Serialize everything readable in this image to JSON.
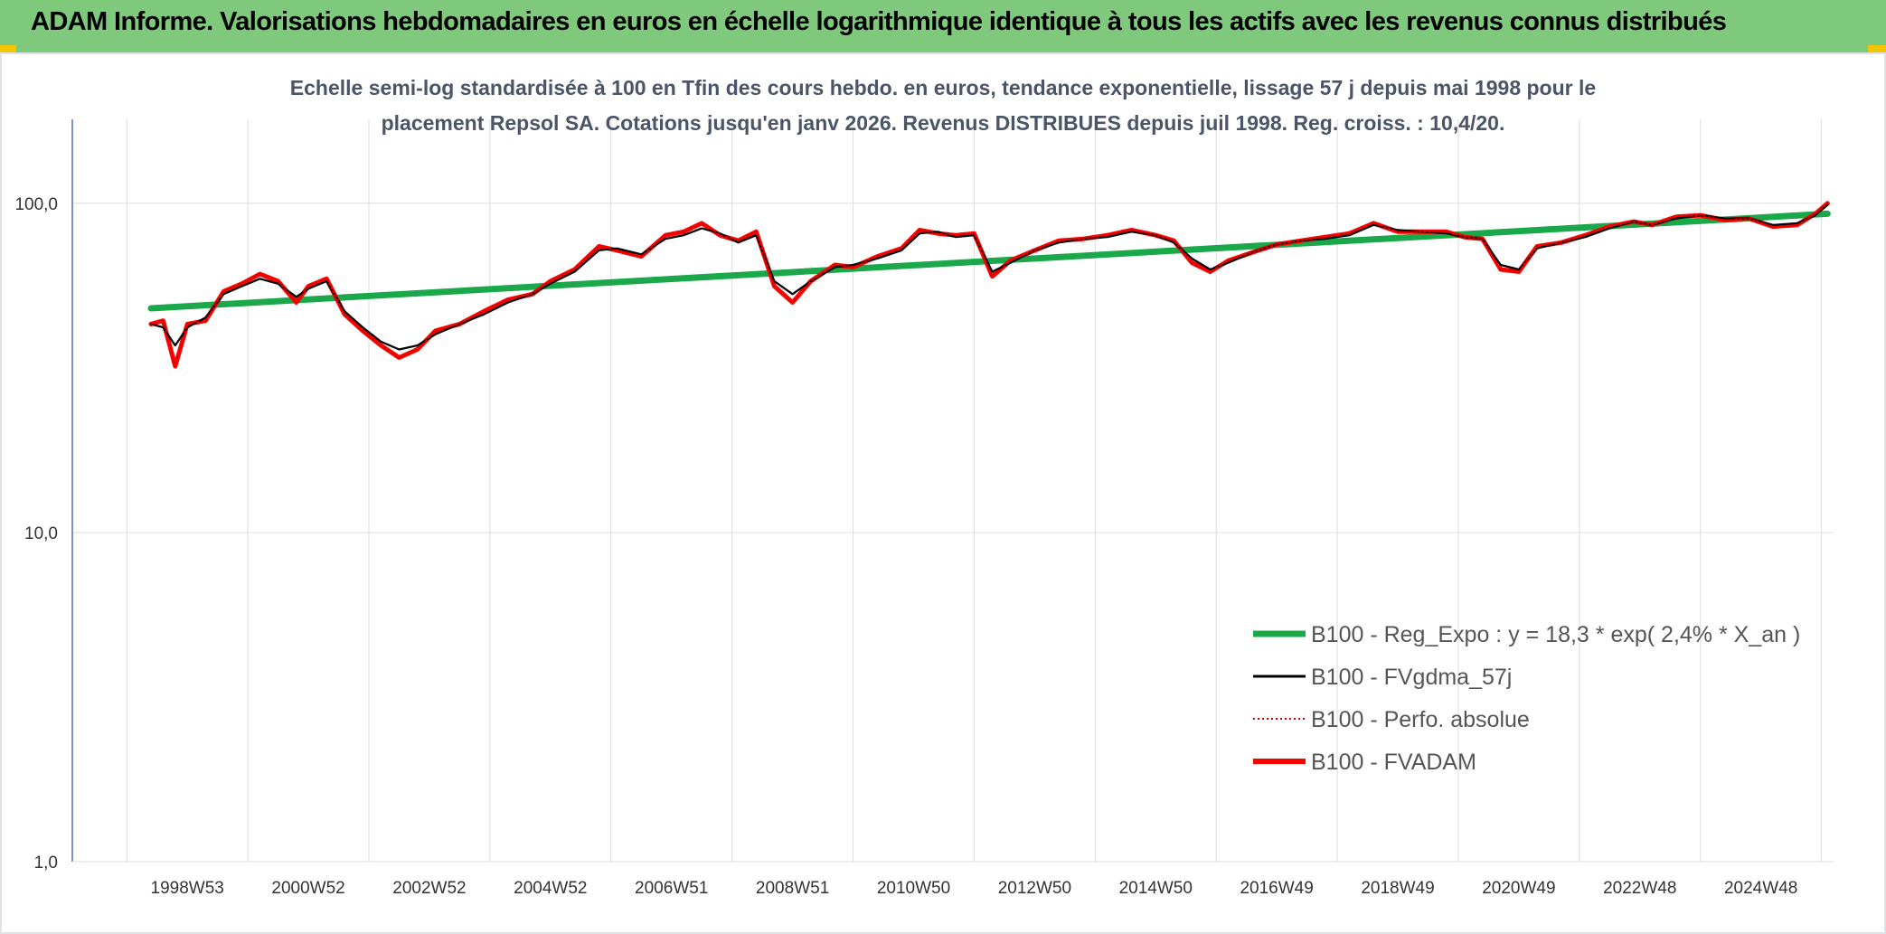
{
  "header": {
    "title": "ADAM Informe. Valorisations hebdomadaires en euros en échelle logarithmique identique à tous les actifs avec les revenus connus distribués"
  },
  "colors": {
    "banner": "#7fc97c",
    "accent_corner": "#f5c400",
    "reg_expo": "#1aa84a",
    "fvgdma": "#000000",
    "perfo": "#d40000",
    "fvadam": "#ff0000"
  },
  "chart_data": {
    "type": "line",
    "subtitle_line1": "Echelle semi-log standardisée à 100 en Tfin des cours hebdo. en euros, tendance exponentielle, lissage 57 j depuis mai 1998 pour le",
    "subtitle_line2": "placement Repsol SA. Cotations jusqu'en janv 2026. Revenus DISTRIBUES depuis juil 1998. Reg. croiss. : 10,4/20.",
    "y_scale": "log",
    "ylim": [
      1,
      180
    ],
    "y_ticks": [
      {
        "value": 1,
        "label": "1,0"
      },
      {
        "value": 10,
        "label": "10,0"
      },
      {
        "value": 100,
        "label": "100,0"
      }
    ],
    "x_range": [
      1997.1,
      2026.2
    ],
    "x_ticks": [
      {
        "year": 1999.0,
        "label": "1998W53"
      },
      {
        "year": 2001.0,
        "label": "2000W52"
      },
      {
        "year": 2003.0,
        "label": "2002W52"
      },
      {
        "year": 2005.0,
        "label": "2004W52"
      },
      {
        "year": 2007.0,
        "label": "2006W51"
      },
      {
        "year": 2009.0,
        "label": "2008W51"
      },
      {
        "year": 2011.0,
        "label": "2010W50"
      },
      {
        "year": 2013.0,
        "label": "2012W50"
      },
      {
        "year": 2015.0,
        "label": "2014W50"
      },
      {
        "year": 2017.0,
        "label": "2016W49"
      },
      {
        "year": 2019.0,
        "label": "2018W49"
      },
      {
        "year": 2021.0,
        "label": "2020W49"
      },
      {
        "year": 2023.0,
        "label": "2022W48"
      },
      {
        "year": 2025.0,
        "label": "2024W48"
      }
    ],
    "grid": true,
    "legend_position": "bottom-right",
    "series": [
      {
        "name": "B100 - Reg_Expo : y = 18,3 * exp( 2,4% *  X_an )",
        "style": "regression",
        "x": [
          1998.4,
          2026.1
        ],
        "y": [
          48,
          93
        ]
      },
      {
        "name": "B100 - FVgdma_57j",
        "style": "smoothed",
        "x": [
          1998.4,
          1998.6,
          1998.8,
          1999.0,
          1999.3,
          1999.6,
          1999.9,
          2000.2,
          2000.5,
          2000.8,
          2001.0,
          2001.3,
          2001.6,
          2001.9,
          2002.2,
          2002.5,
          2002.8,
          2003.1,
          2003.5,
          2003.9,
          2004.3,
          2004.7,
          2005.0,
          2005.4,
          2005.8,
          2006.1,
          2006.5,
          2006.9,
          2007.2,
          2007.5,
          2007.8,
          2008.1,
          2008.4,
          2008.7,
          2009.0,
          2009.3,
          2009.7,
          2010.0,
          2010.4,
          2010.8,
          2011.1,
          2011.4,
          2011.7,
          2012.0,
          2012.3,
          2012.6,
          2013.0,
          2013.4,
          2013.8,
          2014.2,
          2014.6,
          2015.0,
          2015.3,
          2015.6,
          2015.9,
          2016.2,
          2016.6,
          2017.0,
          2017.4,
          2017.8,
          2018.2,
          2018.6,
          2019.0,
          2019.4,
          2019.8,
          2020.1,
          2020.4,
          2020.7,
          2021.0,
          2021.3,
          2021.7,
          2022.1,
          2022.5,
          2022.9,
          2023.2,
          2023.6,
          2024.0,
          2024.4,
          2024.8,
          2025.2,
          2025.6,
          2025.9,
          2026.1
        ],
        "y": [
          43,
          42,
          37,
          42,
          45,
          53,
          56,
          59,
          57,
          52,
          55,
          58,
          47,
          42,
          38,
          36,
          37,
          40,
          43,
          46,
          50,
          53,
          57,
          62,
          72,
          73,
          70,
          78,
          80,
          84,
          81,
          76,
          80,
          58,
          53,
          58,
          64,
          65,
          68,
          72,
          81,
          82,
          79,
          80,
          62,
          66,
          72,
          76,
          78,
          79,
          82,
          80,
          76,
          68,
          63,
          66,
          71,
          75,
          77,
          78,
          80,
          86,
          83,
          82,
          81,
          79,
          78,
          65,
          63,
          73,
          76,
          79,
          84,
          88,
          86,
          90,
          92,
          90,
          90,
          86,
          87,
          92,
          99
        ]
      },
      {
        "name": "B100 - Perfo. absolue",
        "style": "dotted",
        "x": [
          1998.4,
          1998.6,
          1998.8,
          1999.0,
          1999.3,
          1999.6,
          1999.9,
          2000.2,
          2000.5,
          2000.8,
          2001.0,
          2001.3,
          2001.6,
          2001.9,
          2002.2,
          2002.5,
          2002.8,
          2003.1,
          2003.5,
          2003.9,
          2004.3,
          2004.7,
          2005.0,
          2005.4,
          2005.8,
          2006.1,
          2006.5,
          2006.9,
          2007.2,
          2007.5,
          2007.8,
          2008.1,
          2008.4,
          2008.7,
          2009.0,
          2009.3,
          2009.7,
          2010.0,
          2010.4,
          2010.8,
          2011.1,
          2011.4,
          2011.7,
          2012.0,
          2012.3,
          2012.6,
          2013.0,
          2013.4,
          2013.8,
          2014.2,
          2014.6,
          2015.0,
          2015.3,
          2015.6,
          2015.9,
          2016.2,
          2016.6,
          2017.0,
          2017.4,
          2017.8,
          2018.2,
          2018.6,
          2019.0,
          2019.4,
          2019.8,
          2020.1,
          2020.4,
          2020.7,
          2021.0,
          2021.3,
          2021.7,
          2022.1,
          2022.5,
          2022.9,
          2023.2,
          2023.6,
          2024.0,
          2024.4,
          2024.8,
          2025.2,
          2025.6,
          2025.9,
          2026.1
        ],
        "y": [
          43,
          44,
          32,
          43,
          44,
          54,
          57,
          61,
          58,
          50,
          56,
          59,
          46,
          41,
          37,
          34,
          36,
          41,
          43,
          47,
          51,
          53,
          58,
          63,
          74,
          72,
          69,
          80,
          82,
          87,
          80,
          77,
          82,
          56,
          50,
          58,
          65,
          64,
          69,
          73,
          83,
          81,
          80,
          81,
          60,
          67,
          72,
          77,
          78,
          80,
          83,
          80,
          77,
          66,
          62,
          67,
          71,
          75,
          77,
          79,
          81,
          87,
          82,
          82,
          82,
          79,
          78,
          63,
          62,
          74,
          76,
          80,
          85,
          88,
          86,
          91,
          92,
          89,
          90,
          85,
          86,
          93,
          100
        ]
      },
      {
        "name": "B100 - FVADAM",
        "style": "main",
        "x": [
          1998.4,
          1998.6,
          1998.8,
          1999.0,
          1999.3,
          1999.6,
          1999.9,
          2000.2,
          2000.5,
          2000.8,
          2001.0,
          2001.3,
          2001.6,
          2001.9,
          2002.2,
          2002.5,
          2002.8,
          2003.1,
          2003.5,
          2003.9,
          2004.3,
          2004.7,
          2005.0,
          2005.4,
          2005.8,
          2006.1,
          2006.5,
          2006.9,
          2007.2,
          2007.5,
          2007.8,
          2008.1,
          2008.4,
          2008.7,
          2009.0,
          2009.3,
          2009.7,
          2010.0,
          2010.4,
          2010.8,
          2011.1,
          2011.4,
          2011.7,
          2012.0,
          2012.3,
          2012.6,
          2013.0,
          2013.4,
          2013.8,
          2014.2,
          2014.6,
          2015.0,
          2015.3,
          2015.6,
          2015.9,
          2016.2,
          2016.6,
          2017.0,
          2017.4,
          2017.8,
          2018.2,
          2018.6,
          2019.0,
          2019.4,
          2019.8,
          2020.1,
          2020.4,
          2020.7,
          2021.0,
          2021.3,
          2021.7,
          2022.1,
          2022.5,
          2022.9,
          2023.2,
          2023.6,
          2024.0,
          2024.4,
          2024.8,
          2025.2,
          2025.6,
          2025.9,
          2026.1
        ],
        "y": [
          43,
          44,
          32,
          43,
          44,
          54,
          57,
          61,
          58,
          50,
          56,
          59,
          46,
          41,
          37,
          34,
          36,
          41,
          43,
          47,
          51,
          53,
          58,
          63,
          74,
          72,
          69,
          80,
          82,
          87,
          80,
          77,
          82,
          56,
          50,
          58,
          65,
          64,
          69,
          73,
          83,
          81,
          80,
          81,
          60,
          67,
          72,
          77,
          78,
          80,
          83,
          80,
          77,
          66,
          62,
          67,
          71,
          75,
          77,
          79,
          81,
          87,
          82,
          82,
          82,
          79,
          78,
          63,
          62,
          74,
          76,
          80,
          85,
          88,
          86,
          91,
          92,
          89,
          90,
          85,
          86,
          93,
          100
        ]
      }
    ]
  }
}
